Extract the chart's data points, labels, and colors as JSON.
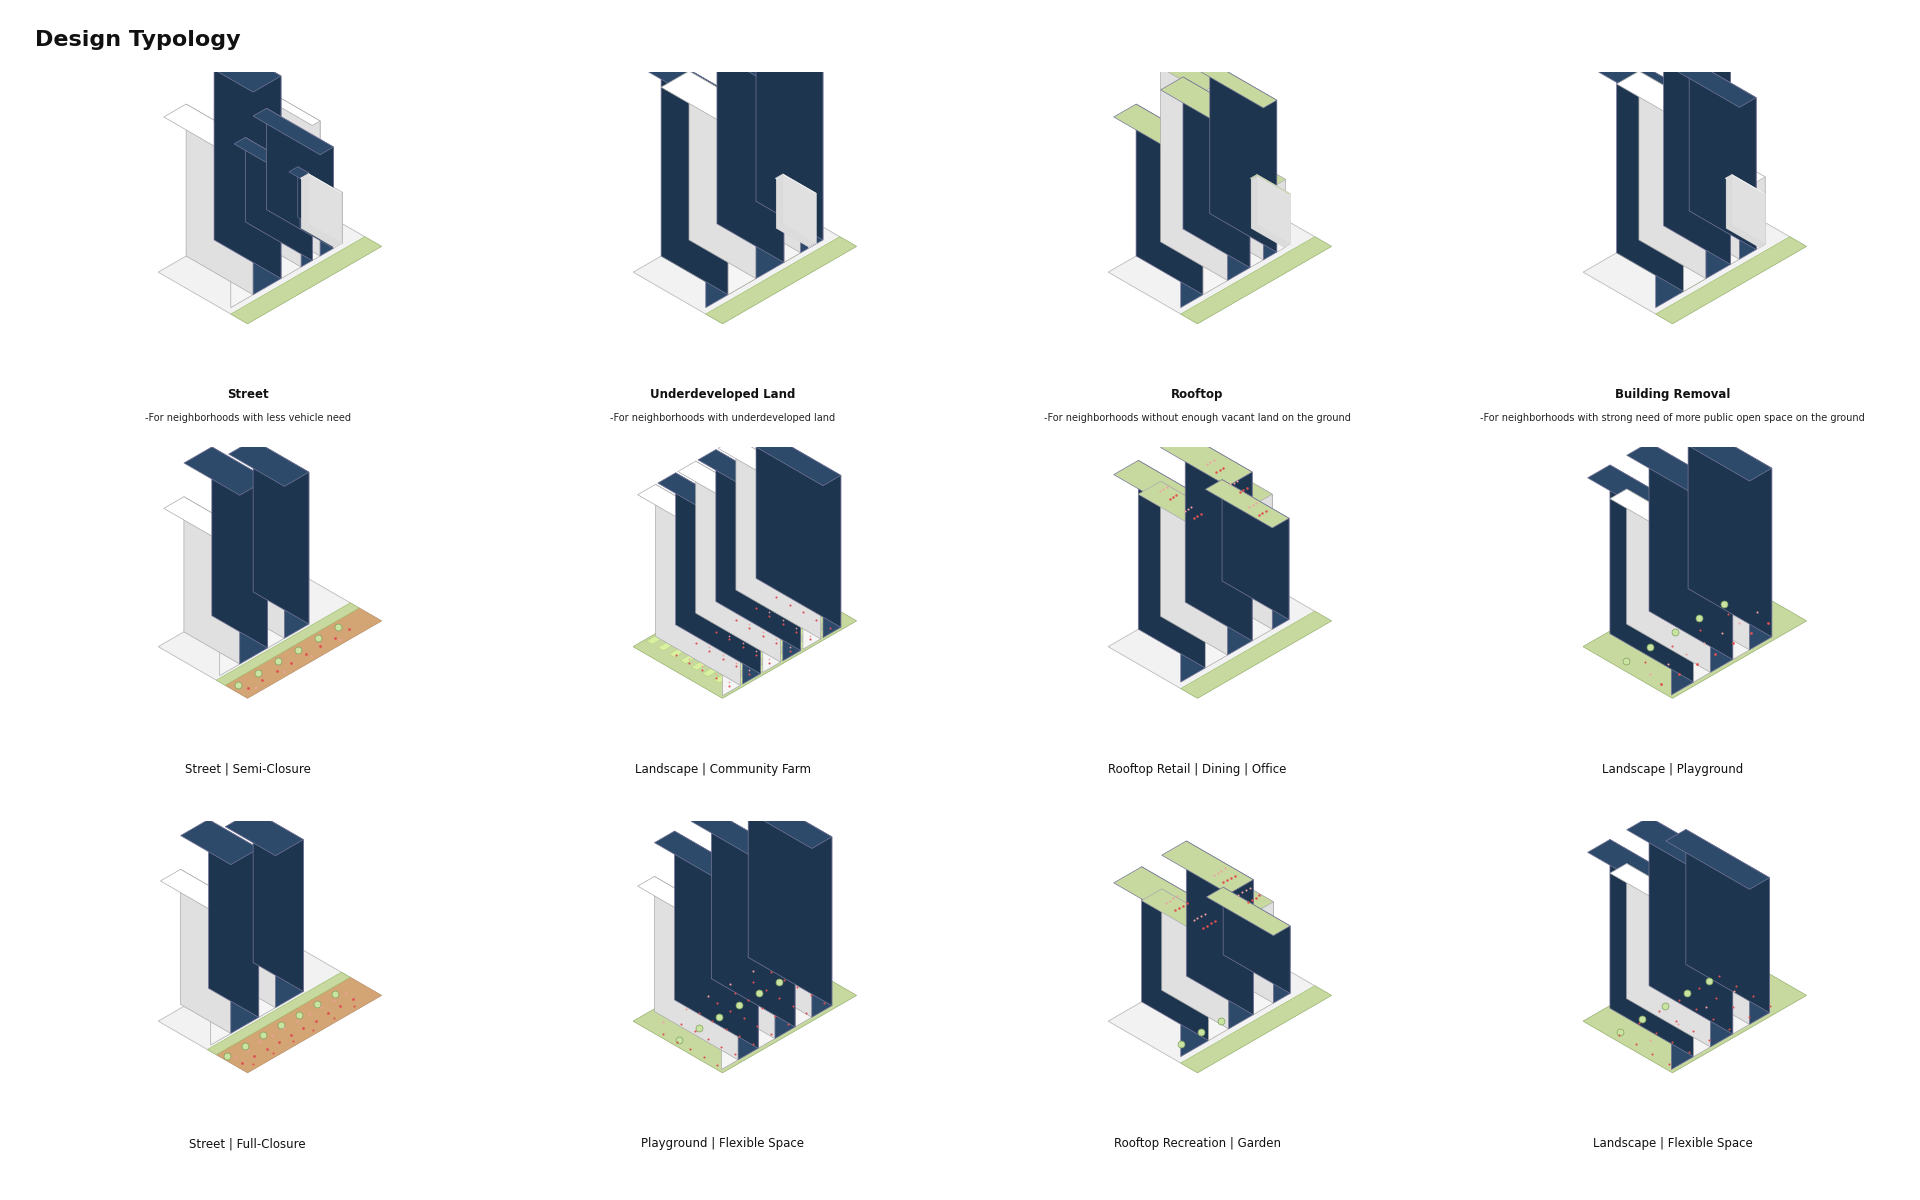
{
  "title": "Design Typology",
  "title_fontsize": 16,
  "title_fontweight": "bold",
  "background_color": "#ffffff",
  "building_dark": "#2d4a6b",
  "green_light": "#c8d9a0",
  "green_medium": "#b5cc8e",
  "tan_color": "#d4a574",
  "red_accent": "#e05050",
  "pink_accent": "#f0a0a0",
  "base_color": "#f2f2f2",
  "base_outline": "#bbbbbb",
  "diagram_titles": [
    [
      "Street",
      "Underdeveloped Land",
      "Rooftop",
      "Building Removal"
    ],
    [
      "Street | Semi-Closure",
      "Landscape | Community Farm",
      "Rooftop Retail | Dining | Office",
      "Landscape | Playground"
    ],
    [
      "Street | Full-Closure",
      "Playground | Flexible Space",
      "Rooftop Recreation | Garden",
      "Landscape | Flexible Space"
    ]
  ],
  "diagram_subtitles": [
    [
      "-For neighborhoods with less vehicle need",
      "-For neighborhoods with underdeveloped land",
      "-For neighborhoods without enough vacant land on the ground",
      "-For neighborhoods with strong need of more public open space on the ground"
    ],
    [
      "",
      "",
      "",
      ""
    ],
    [
      "",
      "",
      "",
      ""
    ]
  ]
}
